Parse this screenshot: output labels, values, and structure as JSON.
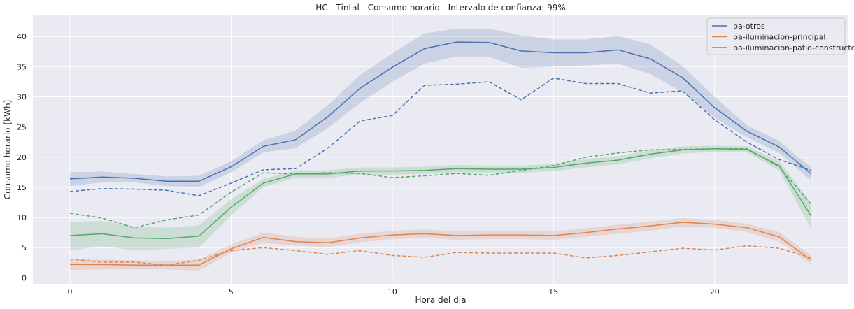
{
  "chart_data": {
    "type": "line",
    "title": "HC - Tintal - Consumo horario - Intervalo de confianza: 99%",
    "xlabel": "Hora del día",
    "ylabel": "Consumo horario [kWh]",
    "xlim": [
      -1.15,
      24.15
    ],
    "ylim": [
      -1.0,
      43.5
    ],
    "xticks": [
      0,
      5,
      10,
      15,
      20
    ],
    "yticks": [
      0,
      5,
      10,
      15,
      20,
      25,
      30,
      35,
      40
    ],
    "grid": true,
    "background": "#eaeaf2",
    "legend_position": "top-right",
    "x": [
      0,
      1,
      2,
      3,
      4,
      5,
      6,
      7,
      8,
      9,
      10,
      11,
      12,
      13,
      14,
      15,
      16,
      17,
      18,
      19,
      20,
      21,
      22,
      23
    ],
    "series": [
      {
        "name": "pa-otros",
        "color": "#4c72b0",
        "values": [
          16.4,
          16.7,
          16.5,
          16.0,
          16.0,
          18.4,
          21.8,
          22.9,
          26.7,
          31.4,
          34.9,
          38.0,
          39.1,
          39.0,
          37.6,
          37.3,
          37.3,
          37.8,
          36.3,
          33.2,
          28.2,
          24.3,
          21.7,
          17.2
        ],
        "ci_lower": [
          15.2,
          15.8,
          15.8,
          15.2,
          15.0,
          17.5,
          20.8,
          21.5,
          24.8,
          29.0,
          32.5,
          35.5,
          36.7,
          36.7,
          34.8,
          35.0,
          35.2,
          35.5,
          33.8,
          30.8,
          26.5,
          23.3,
          20.7,
          16.1
        ],
        "ci_upper": [
          17.5,
          17.6,
          17.2,
          16.8,
          16.9,
          19.3,
          22.8,
          24.4,
          28.6,
          33.6,
          37.2,
          40.5,
          41.3,
          41.3,
          40.2,
          39.5,
          39.5,
          40.1,
          38.7,
          35.1,
          30.0,
          25.3,
          22.7,
          18.2
        ]
      },
      {
        "name": "pa-iluminacion-principal",
        "color": "#dd8452",
        "values": [
          2.2,
          2.2,
          2.1,
          2.1,
          2.1,
          4.8,
          6.7,
          6.0,
          5.8,
          6.6,
          7.1,
          7.3,
          7.0,
          7.1,
          7.1,
          7.0,
          7.5,
          8.1,
          8.6,
          9.2,
          8.9,
          8.3,
          6.8,
          2.9
        ],
        "ci_lower": [
          1.3,
          1.4,
          1.4,
          1.4,
          1.2,
          4.1,
          5.8,
          5.3,
          5.1,
          5.9,
          6.4,
          6.6,
          6.3,
          6.4,
          6.4,
          6.3,
          6.8,
          7.3,
          7.8,
          8.5,
          8.3,
          7.6,
          6.0,
          2.2
        ],
        "ci_upper": [
          3.1,
          3.0,
          2.9,
          2.8,
          3.0,
          5.5,
          7.5,
          6.8,
          6.5,
          7.3,
          7.8,
          8.0,
          7.7,
          7.8,
          7.8,
          7.7,
          8.2,
          8.8,
          9.3,
          9.9,
          9.6,
          9.0,
          7.6,
          3.7
        ]
      },
      {
        "name": "pa-iluminacion-patio-constructor",
        "color": "#55a868",
        "values": [
          7.0,
          7.3,
          6.6,
          6.5,
          6.9,
          11.7,
          15.7,
          17.2,
          17.2,
          17.7,
          17.7,
          17.8,
          18.1,
          18.0,
          18.0,
          18.3,
          19.0,
          19.5,
          20.5,
          21.2,
          21.4,
          21.3,
          18.6,
          10.2
        ],
        "ci_lower": [
          4.6,
          5.2,
          4.6,
          4.8,
          5.0,
          10.3,
          15.0,
          16.6,
          16.6,
          17.1,
          17.1,
          17.2,
          17.5,
          17.4,
          17.4,
          17.7,
          18.3,
          18.8,
          19.8,
          20.6,
          20.9,
          20.8,
          17.8,
          8.1
        ],
        "ci_upper": [
          9.3,
          9.4,
          8.5,
          8.3,
          8.7,
          13.0,
          16.4,
          17.8,
          17.8,
          18.3,
          18.3,
          18.4,
          18.7,
          18.6,
          18.6,
          18.9,
          19.7,
          20.2,
          21.1,
          21.8,
          21.9,
          21.8,
          19.4,
          12.3
        ]
      }
    ],
    "dashed_series": [
      {
        "color": "#4c72b0",
        "values": [
          14.3,
          14.8,
          14.7,
          14.5,
          13.6,
          15.7,
          17.9,
          18.1,
          21.5,
          26.0,
          26.9,
          31.9,
          32.1,
          32.5,
          29.5,
          33.1,
          32.2,
          32.2,
          30.6,
          31.0,
          26.2,
          22.5,
          19.6,
          17.8
        ]
      },
      {
        "color": "#dd8452",
        "values": [
          3.1,
          2.6,
          2.6,
          2.1,
          2.9,
          4.5,
          5.0,
          4.5,
          3.9,
          4.5,
          3.7,
          3.4,
          4.2,
          4.1,
          4.1,
          4.1,
          3.3,
          3.7,
          4.3,
          4.9,
          4.6,
          5.3,
          4.9,
          3.3
        ]
      },
      {
        "color": "#55a868",
        "values": [
          10.7,
          9.9,
          8.3,
          9.6,
          10.4,
          14.2,
          17.4,
          17.2,
          17.4,
          17.3,
          16.6,
          16.9,
          17.3,
          17.0,
          17.8,
          18.6,
          20.0,
          20.7,
          21.2,
          21.3,
          21.4,
          21.4,
          18.4,
          12.2
        ]
      }
    ]
  }
}
